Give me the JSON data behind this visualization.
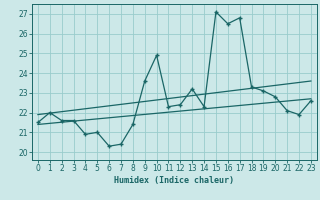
{
  "xlabel": "Humidex (Indice chaleur)",
  "bg_color": "#cce8e8",
  "grid_color": "#99cccc",
  "line_color": "#1a6666",
  "x_ticks": [
    0,
    1,
    2,
    3,
    4,
    5,
    6,
    7,
    8,
    9,
    10,
    11,
    12,
    13,
    14,
    15,
    16,
    17,
    18,
    19,
    20,
    21,
    22,
    23
  ],
  "y_ticks": [
    20,
    21,
    22,
    23,
    24,
    25,
    26,
    27
  ],
  "xlim": [
    -0.5,
    23.5
  ],
  "ylim": [
    19.6,
    27.5
  ],
  "series1_x": [
    0,
    1,
    2,
    3,
    4,
    5,
    6,
    7,
    8,
    9,
    10,
    11,
    12,
    13,
    14,
    15,
    16,
    17,
    18,
    19,
    20,
    21,
    22,
    23
  ],
  "series1_y": [
    21.5,
    22.0,
    21.6,
    21.6,
    20.9,
    21.0,
    20.3,
    20.4,
    21.4,
    23.6,
    24.9,
    22.3,
    22.4,
    23.2,
    22.3,
    27.1,
    26.5,
    26.8,
    23.3,
    23.1,
    22.8,
    22.1,
    21.9,
    22.6
  ],
  "trend1_x": [
    0,
    23
  ],
  "trend1_y": [
    21.4,
    22.7
  ],
  "trend2_x": [
    0,
    23
  ],
  "trend2_y": [
    21.9,
    23.6
  ],
  "tick_fontsize": 5.5,
  "xlabel_fontsize": 6.0
}
